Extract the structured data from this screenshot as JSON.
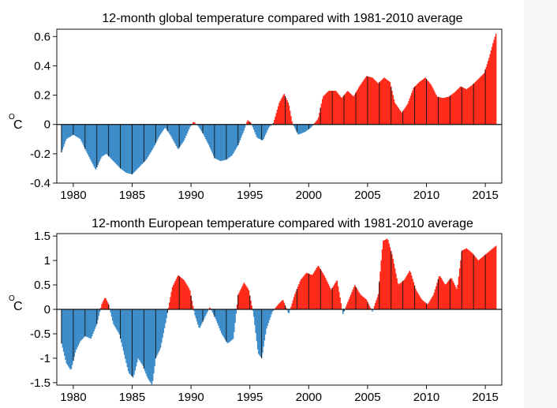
{
  "colors": {
    "positive": "#ff2a1a",
    "negative": "#3d8cc9",
    "outline": "#111111",
    "background": "#ffffff"
  },
  "chart_data": [
    {
      "type": "bar",
      "title": "12-month global temperature compared with 1981-2010 average",
      "ylabel": "°C",
      "ylabel_unit_sup": "O",
      "ylabel_unit": "C",
      "xlim": [
        1978.6,
        2016.4
      ],
      "ylim": [
        -0.4,
        0.65
      ],
      "xticks": [
        1980,
        1985,
        1990,
        1995,
        2000,
        2005,
        2010,
        2015
      ],
      "xtick_labels": [
        "1980",
        "1985",
        "1990",
        "1995",
        "2000",
        "2005",
        "2010",
        "2015"
      ],
      "yticks": [
        0.6,
        0.4,
        0.2,
        0,
        -0.2,
        -0.4
      ],
      "ytick_labels": [
        "0.6",
        "0.4",
        "0.2",
        "0",
        "-0.2",
        "-0.4"
      ],
      "sampling": "monthly, 12-month running mean, x = decimal year",
      "keypoints": [
        [
          1979.0,
          -0.19
        ],
        [
          1979.4,
          -0.1
        ],
        [
          1980.0,
          -0.07
        ],
        [
          1980.6,
          -0.1
        ],
        [
          1981.2,
          -0.2
        ],
        [
          1981.9,
          -0.31
        ],
        [
          1982.4,
          -0.22
        ],
        [
          1982.8,
          -0.2
        ],
        [
          1983.4,
          -0.25
        ],
        [
          1984.0,
          -0.3
        ],
        [
          1984.5,
          -0.33
        ],
        [
          1985.0,
          -0.34
        ],
        [
          1985.6,
          -0.29
        ],
        [
          1986.2,
          -0.24
        ],
        [
          1986.8,
          -0.16
        ],
        [
          1987.3,
          -0.08
        ],
        [
          1987.8,
          -0.02
        ],
        [
          1988.3,
          -0.08
        ],
        [
          1988.9,
          -0.17
        ],
        [
          1989.4,
          -0.11
        ],
        [
          1989.9,
          -0.02
        ],
        [
          1990.2,
          0.02
        ],
        [
          1990.6,
          -0.01
        ],
        [
          1991.0,
          -0.06
        ],
        [
          1991.5,
          -0.14
        ],
        [
          1992.0,
          -0.23
        ],
        [
          1992.5,
          -0.25
        ],
        [
          1993.0,
          -0.24
        ],
        [
          1993.5,
          -0.21
        ],
        [
          1994.0,
          -0.14
        ],
        [
          1994.5,
          -0.04
        ],
        [
          1994.8,
          0.03
        ],
        [
          1995.1,
          0.01
        ],
        [
          1995.6,
          -0.09
        ],
        [
          1996.1,
          -0.11
        ],
        [
          1996.6,
          -0.02
        ],
        [
          1997.0,
          0.01
        ],
        [
          1997.5,
          0.15
        ],
        [
          1997.9,
          0.21
        ],
        [
          1998.3,
          0.14
        ],
        [
          1998.6,
          0.01
        ],
        [
          1999.1,
          -0.07
        ],
        [
          1999.7,
          -0.05
        ],
        [
          2000.2,
          -0.02
        ],
        [
          2000.8,
          0.04
        ],
        [
          2001.2,
          0.19
        ],
        [
          2001.7,
          0.23
        ],
        [
          2002.3,
          0.23
        ],
        [
          2002.8,
          0.18
        ],
        [
          2003.3,
          0.23
        ],
        [
          2003.8,
          0.19
        ],
        [
          2004.3,
          0.26
        ],
        [
          2004.9,
          0.33
        ],
        [
          2005.4,
          0.32
        ],
        [
          2005.9,
          0.28
        ],
        [
          2006.4,
          0.32
        ],
        [
          2006.9,
          0.29
        ],
        [
          2007.3,
          0.15
        ],
        [
          2007.9,
          0.08
        ],
        [
          2008.4,
          0.14
        ],
        [
          2008.9,
          0.25
        ],
        [
          2009.4,
          0.29
        ],
        [
          2009.9,
          0.32
        ],
        [
          2010.4,
          0.27
        ],
        [
          2010.9,
          0.19
        ],
        [
          2011.4,
          0.18
        ],
        [
          2011.9,
          0.19
        ],
        [
          2012.4,
          0.22
        ],
        [
          2012.9,
          0.26
        ],
        [
          2013.4,
          0.24
        ],
        [
          2013.9,
          0.27
        ],
        [
          2014.4,
          0.31
        ],
        [
          2014.9,
          0.35
        ],
        [
          2015.3,
          0.45
        ],
        [
          2015.7,
          0.57
        ],
        [
          2015.9,
          0.62
        ]
      ]
    },
    {
      "type": "bar",
      "title": "12-month European temperature compared with 1981-2010 average",
      "ylabel": "°C",
      "ylabel_unit_sup": "O",
      "ylabel_unit": "C",
      "xlim": [
        1978.6,
        2016.4
      ],
      "ylim": [
        -1.55,
        1.55
      ],
      "xticks": [
        1980,
        1985,
        1990,
        1995,
        2000,
        2005,
        2010,
        2015
      ],
      "xtick_labels": [
        "1980",
        "1985",
        "1990",
        "1995",
        "2000",
        "2005",
        "2010",
        "2015"
      ],
      "yticks": [
        1.5,
        1,
        0.5,
        0,
        -0.5,
        -1,
        -1.5
      ],
      "ytick_labels": [
        "1.5",
        "1",
        "0.5",
        "0",
        "-0.5",
        "-1",
        "-1.5"
      ],
      "sampling": "monthly, 12-month running mean, x = decimal year",
      "keypoints": [
        [
          1979.0,
          -0.7
        ],
        [
          1979.4,
          -1.1
        ],
        [
          1979.8,
          -1.25
        ],
        [
          1980.2,
          -0.85
        ],
        [
          1980.6,
          -0.65
        ],
        [
          1981.0,
          -0.55
        ],
        [
          1981.5,
          -0.6
        ],
        [
          1982.0,
          -0.3
        ],
        [
          1982.4,
          0.1
        ],
        [
          1982.7,
          0.25
        ],
        [
          1983.0,
          0.1
        ],
        [
          1983.4,
          -0.3
        ],
        [
          1983.9,
          -0.5
        ],
        [
          1984.3,
          -0.9
        ],
        [
          1984.7,
          -1.3
        ],
        [
          1985.1,
          -1.4
        ],
        [
          1985.5,
          -1.0
        ],
        [
          1985.9,
          -1.15
        ],
        [
          1986.3,
          -1.4
        ],
        [
          1986.7,
          -1.55
        ],
        [
          1987.0,
          -1.0
        ],
        [
          1987.4,
          -0.8
        ],
        [
          1987.9,
          -0.2
        ],
        [
          1988.4,
          0.45
        ],
        [
          1988.9,
          0.7
        ],
        [
          1989.4,
          0.6
        ],
        [
          1989.9,
          0.4
        ],
        [
          1990.3,
          -0.1
        ],
        [
          1990.7,
          -0.4
        ],
        [
          1991.1,
          -0.2
        ],
        [
          1991.6,
          0.05
        ],
        [
          1992.1,
          -0.2
        ],
        [
          1992.6,
          -0.5
        ],
        [
          1993.1,
          -0.7
        ],
        [
          1993.6,
          -0.6
        ],
        [
          1994.0,
          0.3
        ],
        [
          1994.5,
          0.55
        ],
        [
          1994.9,
          0.4
        ],
        [
          1995.3,
          -0.1
        ],
        [
          1995.7,
          -0.9
        ],
        [
          1996.0,
          -1.0
        ],
        [
          1996.4,
          -0.4
        ],
        [
          1996.9,
          -0.05
        ],
        [
          1997.4,
          0.1
        ],
        [
          1997.8,
          0.2
        ],
        [
          1998.3,
          -0.1
        ],
        [
          1998.8,
          0.3
        ],
        [
          1999.3,
          0.6
        ],
        [
          1999.8,
          0.75
        ],
        [
          2000.3,
          0.7
        ],
        [
          2000.8,
          0.9
        ],
        [
          2001.3,
          0.7
        ],
        [
          2001.9,
          0.4
        ],
        [
          2002.4,
          0.6
        ],
        [
          2002.9,
          -0.1
        ],
        [
          2003.4,
          0.2
        ],
        [
          2003.9,
          0.5
        ],
        [
          2004.4,
          0.3
        ],
        [
          2004.9,
          0.2
        ],
        [
          2005.4,
          -0.05
        ],
        [
          2005.9,
          0.3
        ],
        [
          2006.3,
          1.4
        ],
        [
          2006.7,
          1.45
        ],
        [
          2007.1,
          1.1
        ],
        [
          2007.6,
          0.5
        ],
        [
          2008.1,
          0.6
        ],
        [
          2008.6,
          0.8
        ],
        [
          2009.1,
          0.4
        ],
        [
          2009.6,
          0.2
        ],
        [
          2010.1,
          0.1
        ],
        [
          2010.6,
          0.3
        ],
        [
          2011.1,
          0.7
        ],
        [
          2011.6,
          0.5
        ],
        [
          2012.1,
          0.65
        ],
        [
          2012.6,
          0.4
        ],
        [
          2013.0,
          1.2
        ],
        [
          2013.4,
          1.25
        ],
        [
          2013.9,
          1.15
        ],
        [
          2014.4,
          1.0
        ],
        [
          2014.9,
          1.1
        ],
        [
          2015.4,
          1.2
        ],
        [
          2015.9,
          1.3
        ]
      ]
    }
  ]
}
